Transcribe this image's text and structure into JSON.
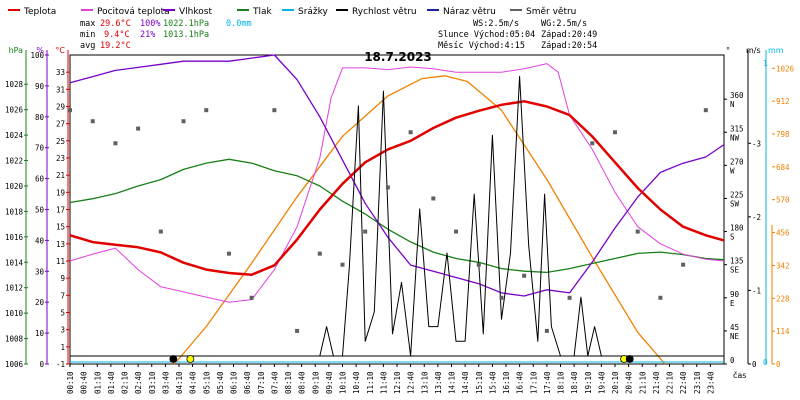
{
  "chart_data": {
    "type": "line",
    "title": "18.7.2023",
    "legend": [
      {
        "label": "Teplota",
        "color": "#e00000"
      },
      {
        "label": "Pocitová teplota",
        "color": "#e040e0"
      },
      {
        "label": "Vlhkost",
        "color": "#7a00c8"
      },
      {
        "label": "Tlak",
        "color": "#188018"
      },
      {
        "label": "Srážky",
        "color": "#00b4e6"
      },
      {
        "label": "Rychlost větru",
        "color": "#000000"
      },
      {
        "label": "Náraz větru",
        "color": "#2020a0"
      },
      {
        "label": "Směr větru",
        "color": "#606060"
      }
    ],
    "stats": {
      "max": {
        "label": "max",
        "temp": "29.6°C",
        "hum": "100%",
        "press": "1022.1hPa",
        "rain": "0.0mm"
      },
      "min": {
        "label": "min",
        "temp": "9.4°C",
        "hum": "21%",
        "press": "1013.1hPa"
      },
      "avg": {
        "label": "avg",
        "temp": "19.2°C"
      }
    },
    "info": {
      "ws": "WS:2.5m/s",
      "wg": "WG:2.5m/s",
      "sun_rise": "Slunce Východ:05:04",
      "sun_set": "Západ:20:49",
      "moon_rise": "Měsíc  Východ:4:15",
      "moon_set": "Západ:20:54"
    },
    "axes": {
      "hpa": {
        "unit": "hPa",
        "ticks": [
          1006,
          1008,
          1010,
          1012,
          1014,
          1016,
          1018,
          1020,
          1022,
          1024,
          1026,
          1028
        ],
        "range": [
          1006,
          1030.3
        ]
      },
      "pct": {
        "unit": "%",
        "ticks": [
          0,
          10,
          20,
          30,
          40,
          50,
          60,
          70,
          80,
          90,
          100
        ],
        "range": [
          0,
          100
        ]
      },
      "temp": {
        "unit": "°C",
        "ticks": [
          -1,
          1,
          3,
          5,
          7,
          9,
          11,
          13,
          15,
          17,
          19,
          21,
          23,
          25,
          27,
          29,
          31,
          33
        ],
        "range": [
          -1,
          35
        ]
      },
      "dir": {
        "unit": "°",
        "ticks": [
          [
            "0",
            ""
          ],
          [
            "45",
            "NE"
          ],
          [
            "90",
            "E"
          ],
          [
            "135",
            "SE"
          ],
          [
            "180",
            "S"
          ],
          [
            "225",
            "SW"
          ],
          [
            "270",
            "W"
          ],
          [
            "315",
            "NW"
          ],
          [
            "360",
            "N"
          ]
        ],
        "range": [
          0,
          420
        ]
      },
      "ms": {
        "unit": "m/s",
        "ticks": [
          "0",
          "-1",
          "-2",
          "-3"
        ],
        "range": [
          0,
          4.2
        ]
      },
      "mm": {
        "unit": "mm",
        "ticks": [
          "0",
          "1"
        ]
      },
      "sun": {
        "unit": "",
        "ticks": [
          0,
          114,
          228,
          342,
          456,
          570,
          684,
          798,
          912,
          1026
        ],
        "range": [
          0,
          1072
        ]
      },
      "x_label": "čas",
      "x_ticks": [
        "00:10",
        "00:40",
        "01:10",
        "01:40",
        "02:10",
        "02:40",
        "03:10",
        "03:40",
        "04:10",
        "04:40",
        "05:10",
        "05:40",
        "06:10",
        "06:40",
        "07:10",
        "07:40",
        "08:10",
        "08:40",
        "09:10",
        "09:40",
        "10:10",
        "10:40",
        "11:10",
        "11:40",
        "12:10",
        "12:40",
        "13:10",
        "13:40",
        "14:10",
        "14:40",
        "15:10",
        "15:40",
        "16:10",
        "16:40",
        "17:10",
        "17:40",
        "18:10",
        "18:40",
        "19:10",
        "19:40",
        "20:10",
        "20:40",
        "21:10",
        "21:40",
        "22:10",
        "22:40",
        "23:10",
        "23:40"
      ]
    },
    "series": {
      "temperature_c": [
        [
          0,
          14
        ],
        [
          1,
          13.2
        ],
        [
          2,
          12.9
        ],
        [
          3,
          12.6
        ],
        [
          4,
          12
        ],
        [
          5,
          10.8
        ],
        [
          6,
          10
        ],
        [
          7,
          9.6
        ],
        [
          8,
          9.4
        ],
        [
          9,
          10.5
        ],
        [
          10,
          13.5
        ],
        [
          11,
          17
        ],
        [
          12,
          20
        ],
        [
          13,
          22.5
        ],
        [
          14,
          24
        ],
        [
          15,
          25
        ],
        [
          16,
          26.5
        ],
        [
          17,
          27.7
        ],
        [
          18,
          28.5
        ],
        [
          19,
          29.2
        ],
        [
          20,
          29.6
        ],
        [
          21,
          29
        ],
        [
          22,
          28
        ],
        [
          23,
          25.5
        ],
        [
          24,
          22.5
        ],
        [
          25,
          19.5
        ],
        [
          26,
          17
        ],
        [
          27,
          15
        ],
        [
          28,
          14
        ],
        [
          28.8,
          13.4
        ]
      ],
      "feels_like_c": [
        [
          0,
          11
        ],
        [
          1,
          11.8
        ],
        [
          2,
          12.5
        ],
        [
          3,
          10
        ],
        [
          4,
          8
        ],
        [
          5,
          7.4
        ],
        [
          6,
          6.8
        ],
        [
          7,
          6.2
        ],
        [
          8,
          6.5
        ],
        [
          9,
          10
        ],
        [
          10,
          15
        ],
        [
          11,
          23
        ],
        [
          11.5,
          30
        ],
        [
          12,
          33.5
        ],
        [
          13,
          33.5
        ],
        [
          14,
          33.3
        ],
        [
          15,
          33.6
        ],
        [
          16,
          33.4
        ],
        [
          17,
          33
        ],
        [
          18,
          33
        ],
        [
          19,
          33
        ],
        [
          20,
          33.4
        ],
        [
          21,
          34
        ],
        [
          21.5,
          33
        ],
        [
          22,
          28
        ],
        [
          23,
          24
        ],
        [
          24,
          19
        ],
        [
          25,
          15
        ],
        [
          26,
          13
        ],
        [
          27,
          11.8
        ],
        [
          28,
          11.2
        ],
        [
          28.8,
          11
        ]
      ],
      "humidity_pct": [
        [
          0,
          91
        ],
        [
          1,
          93
        ],
        [
          2,
          95
        ],
        [
          3,
          96
        ],
        [
          4,
          97
        ],
        [
          5,
          98
        ],
        [
          6,
          98
        ],
        [
          7,
          98
        ],
        [
          8,
          99
        ],
        [
          9,
          100
        ],
        [
          10,
          92
        ],
        [
          11,
          80
        ],
        [
          12,
          66
        ],
        [
          13,
          52
        ],
        [
          14,
          41
        ],
        [
          15,
          32
        ],
        [
          16,
          30
        ],
        [
          17,
          28
        ],
        [
          18,
          26
        ],
        [
          19,
          23
        ],
        [
          20,
          22
        ],
        [
          21,
          24
        ],
        [
          22,
          23
        ],
        [
          23,
          33
        ],
        [
          24,
          44
        ],
        [
          25,
          54
        ],
        [
          26,
          62
        ],
        [
          27,
          65
        ],
        [
          28,
          67
        ],
        [
          28.8,
          71
        ]
      ],
      "pressure_hpa": [
        [
          0,
          1018.7
        ],
        [
          1,
          1019
        ],
        [
          2,
          1019.4
        ],
        [
          3,
          1020
        ],
        [
          4,
          1020.5
        ],
        [
          5,
          1021.3
        ],
        [
          6,
          1021.8
        ],
        [
          7,
          1022.1
        ],
        [
          8,
          1021.8
        ],
        [
          9,
          1021.2
        ],
        [
          10,
          1020.8
        ],
        [
          11,
          1020
        ],
        [
          12,
          1018.8
        ],
        [
          13,
          1017.8
        ],
        [
          14,
          1016.6
        ],
        [
          15,
          1015.6
        ],
        [
          16,
          1014.8
        ],
        [
          17,
          1014.3
        ],
        [
          18,
          1014
        ],
        [
          19,
          1013.5
        ],
        [
          20,
          1013.3
        ],
        [
          21,
          1013.2
        ],
        [
          22,
          1013.5
        ],
        [
          23,
          1013.9
        ],
        [
          24,
          1014.3
        ],
        [
          25,
          1014.7
        ],
        [
          26,
          1014.8
        ],
        [
          27,
          1014.6
        ],
        [
          28,
          1014.3
        ],
        [
          28.8,
          1014.2
        ]
      ],
      "wind_speed_ms": [
        [
          0,
          0
        ],
        [
          11,
          0
        ],
        [
          11.3,
          0.4
        ],
        [
          11.6,
          0
        ],
        [
          12,
          0
        ],
        [
          12.3,
          1.2
        ],
        [
          12.7,
          3.4
        ],
        [
          13,
          0.2
        ],
        [
          13.4,
          0.6
        ],
        [
          13.8,
          3.6
        ],
        [
          14.2,
          0.3
        ],
        [
          14.6,
          1
        ],
        [
          15,
          0
        ],
        [
          15.4,
          2
        ],
        [
          15.8,
          0.4
        ],
        [
          16.2,
          0.4
        ],
        [
          16.6,
          1.4
        ],
        [
          17,
          0.2
        ],
        [
          17.4,
          0.2
        ],
        [
          17.8,
          2.2
        ],
        [
          18.2,
          0.3
        ],
        [
          18.6,
          3
        ],
        [
          19,
          0.5
        ],
        [
          19.4,
          1.4
        ],
        [
          19.8,
          3.8
        ],
        [
          20.2,
          1.5
        ],
        [
          20.6,
          0.2
        ],
        [
          20.9,
          2.2
        ],
        [
          21.2,
          0.4
        ],
        [
          21.6,
          0
        ],
        [
          22.2,
          0
        ],
        [
          22.5,
          0.8
        ],
        [
          22.8,
          0
        ],
        [
          23.1,
          0.4
        ],
        [
          23.4,
          0
        ],
        [
          28.8,
          0
        ]
      ],
      "wind_gust_ms": [
        [
          0,
          0
        ],
        [
          28.8,
          0
        ]
      ],
      "rain_mm": [
        [
          0,
          0
        ],
        [
          28.8,
          0
        ]
      ],
      "wind_dir_deg": [
        [
          0,
          345
        ],
        [
          1,
          330
        ],
        [
          2,
          300
        ],
        [
          3,
          320
        ],
        [
          4,
          180
        ],
        [
          5,
          330
        ],
        [
          6,
          345
        ],
        [
          7,
          150
        ],
        [
          8,
          90
        ],
        [
          9,
          345
        ],
        [
          10,
          45
        ],
        [
          11,
          150
        ],
        [
          12,
          135
        ],
        [
          13,
          180
        ],
        [
          14,
          240
        ],
        [
          15,
          315
        ],
        [
          16,
          225
        ],
        [
          17,
          180
        ],
        [
          18,
          135
        ],
        [
          19,
          90
        ],
        [
          20,
          120
        ],
        [
          21,
          45
        ],
        [
          22,
          90
        ],
        [
          23,
          300
        ],
        [
          24,
          315
        ],
        [
          25,
          180
        ],
        [
          26,
          90
        ],
        [
          27,
          135
        ],
        [
          28,
          345
        ]
      ],
      "solar_wm2": [
        [
          4.6,
          0
        ],
        [
          6,
          130
        ],
        [
          8,
          350
        ],
        [
          10,
          580
        ],
        [
          12,
          790
        ],
        [
          14,
          930
        ],
        [
          15.5,
          990
        ],
        [
          16.5,
          1000
        ],
        [
          17.5,
          980
        ],
        [
          19,
          880
        ],
        [
          21,
          640
        ],
        [
          23,
          370
        ],
        [
          25,
          110
        ],
        [
          26.2,
          0
        ]
      ]
    },
    "markers": [
      {
        "x": 4.55,
        "symbol": "moon-rise",
        "fill": "#000000"
      },
      {
        "x": 5.3,
        "symbol": "sun-rise",
        "fill": "#ffff00"
      },
      {
        "x": 24.4,
        "symbol": "sun-set",
        "fill": "#ffff00"
      },
      {
        "x": 24.65,
        "symbol": "moon-set",
        "fill": "#000000"
      }
    ]
  }
}
